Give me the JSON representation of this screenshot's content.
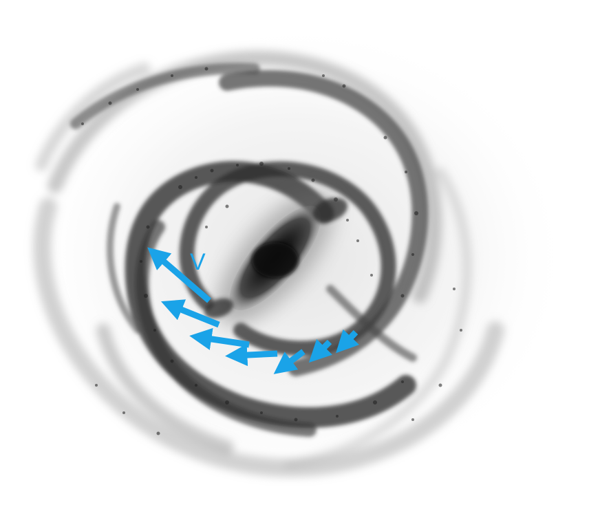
{
  "diagram": {
    "velocity_label": "V",
    "arrow_color": "#1aa3e8",
    "dust_color": "#1e1e1e",
    "core_color": "#0a0a0a",
    "arrows": [
      {
        "name": "velocity-arrow-1"
      },
      {
        "name": "velocity-arrow-2"
      },
      {
        "name": "velocity-arrow-3"
      },
      {
        "name": "velocity-arrow-4"
      },
      {
        "name": "velocity-arrow-5"
      },
      {
        "name": "velocity-arrow-6"
      },
      {
        "name": "velocity-arrow-7"
      }
    ]
  }
}
